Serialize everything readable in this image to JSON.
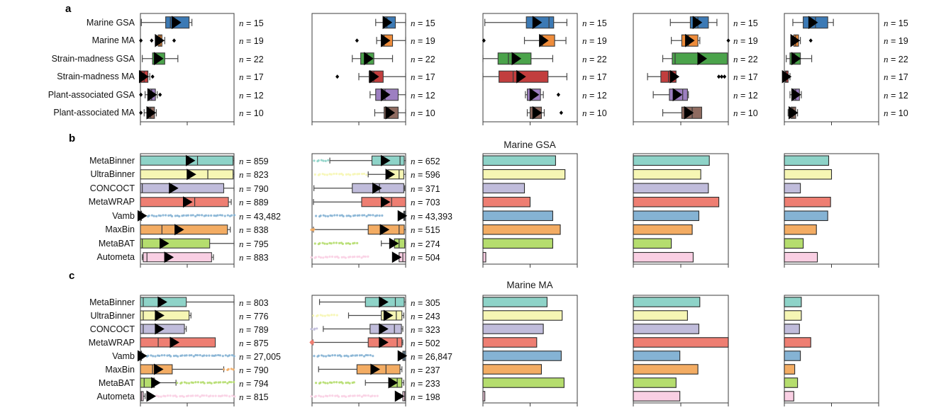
{
  "figure_labels": {
    "panel_a": "a",
    "panel_b": "b",
    "panel_c": "c"
  },
  "titles": {
    "panel_b": "Marine GSA",
    "panel_c": "Marine MA"
  },
  "n_symbol": "n",
  "styles": {
    "panel_a_colors": [
      "#3c7ab5",
      "#ee8c3b",
      "#4ba34b",
      "#c23e3e",
      "#9d7fc1",
      "#8f6b60"
    ],
    "panel_bc_colors": [
      "#8ed3c8",
      "#f6f6b4",
      "#c0bcdb",
      "#ee7e72",
      "#85b3d4",
      "#f3ac63",
      "#b5dd6e",
      "#f9cfe3"
    ],
    "box_stroke": "#3a3a3a",
    "whisker_color": "#4a4a4a",
    "mean_marker_color": "#000000",
    "axis_color": "#3c3c3c"
  },
  "chart_data": {
    "panel_a": {
      "type": "boxplot_grid",
      "note": "5 unlabeled metric columns; horizontal boxplots; x axes normalized 0-1, tick labels cropped out of screenshot",
      "x_axis": {
        "range": [
          0,
          1
        ],
        "ticks": [
          0,
          0.5,
          1
        ],
        "tick_labels_visible": false
      },
      "categories": [
        "Marine GSA",
        "Marine MA",
        "Strain-madness GSA",
        "Strain-madness MA",
        "Plant-associated GSA",
        "Plant-associated MA"
      ],
      "n_labels": [
        "15",
        "19",
        "22",
        "17",
        "12",
        "10"
      ],
      "plots": [
        {
          "boxes": [
            {
              "lo": 0.01,
              "q1": 0.27,
              "med": 0.32,
              "q3": 0.52,
              "hi": 0.55,
              "mean": 0.38
            },
            {
              "lo": 0.16,
              "q1": 0.19,
              "med": 0.21,
              "q3": 0.23,
              "hi": 0.26,
              "mean": 0.2,
              "fliers": [
                0.005,
                0.12,
                0.36
              ]
            },
            {
              "lo": 0.02,
              "q1": 0.13,
              "med": 0.16,
              "q3": 0.26,
              "hi": 0.4,
              "mean": 0.19
            },
            {
              "lo": 0.0,
              "q1": 0.0,
              "med": 0.04,
              "q3": 0.08,
              "hi": 0.1,
              "mean": 0.03,
              "fliers": [
                0.13
              ]
            },
            {
              "lo": 0.05,
              "q1": 0.08,
              "med": 0.12,
              "q3": 0.16,
              "hi": 0.18,
              "mean": 0.12,
              "fliers": [
                0.005,
                0.21
              ]
            },
            {
              "lo": 0.04,
              "q1": 0.07,
              "med": 0.11,
              "q3": 0.15,
              "hi": 0.17,
              "mean": 0.11,
              "fliers": [
                0.005
              ]
            }
          ]
        },
        {
          "boxes": [
            {
              "lo": 0.68,
              "q1": 0.76,
              "med": 0.8,
              "q3": 0.89,
              "hi": 1.0,
              "mean": 0.8
            },
            {
              "lo": 0.69,
              "q1": 0.74,
              "med": 0.77,
              "q3": 0.86,
              "hi": 1.0,
              "mean": 0.78,
              "fliers": [
                0.48
              ]
            },
            {
              "lo": 0.43,
              "q1": 0.52,
              "med": 0.59,
              "q3": 0.66,
              "hi": 0.86,
              "mean": 0.6
            },
            {
              "lo": 0.5,
              "q1": 0.61,
              "med": 0.66,
              "q3": 0.76,
              "hi": 1.0,
              "mean": 0.66,
              "fliers": [
                0.27
              ]
            },
            {
              "lo": 0.62,
              "q1": 0.68,
              "med": 0.78,
              "q3": 0.92,
              "hi": 1.0,
              "mean": 0.78
            },
            {
              "lo": 0.67,
              "q1": 0.77,
              "med": 0.82,
              "q3": 0.92,
              "hi": 1.0,
              "mean": 0.83
            }
          ]
        },
        {
          "boxes": [
            {
              "lo": 0.02,
              "q1": 0.46,
              "med": 0.7,
              "q3": 0.75,
              "hi": 0.89,
              "mean": 0.57
            },
            {
              "lo": 0.44,
              "q1": 0.61,
              "med": 0.63,
              "q3": 0.76,
              "hi": 0.88,
              "mean": 0.64,
              "fliers": [
                0.01
              ]
            },
            {
              "lo": 0.0,
              "q1": 0.16,
              "med": 0.27,
              "q3": 0.51,
              "hi": 0.74,
              "mean": 0.35
            },
            {
              "lo": 0.0,
              "q1": 0.17,
              "med": 0.32,
              "q3": 0.69,
              "hi": 0.89,
              "mean": 0.4
            },
            {
              "lo": 0.45,
              "q1": 0.47,
              "med": 0.52,
              "q3": 0.61,
              "hi": 0.64,
              "mean": 0.54,
              "fliers": [
                0.8
              ]
            },
            {
              "lo": 0.47,
              "q1": 0.5,
              "med": 0.55,
              "q3": 0.62,
              "hi": 0.65,
              "mean": 0.57,
              "fliers": [
                0.83
              ]
            }
          ]
        },
        {
          "boxes": [
            {
              "lo": 0.39,
              "q1": 0.6,
              "med": 0.68,
              "q3": 0.79,
              "hi": 0.88,
              "mean": 0.67
            },
            {
              "lo": 0.4,
              "q1": 0.51,
              "med": 0.58,
              "q3": 0.68,
              "hi": 0.7,
              "mean": 0.59,
              "fliers": [
                1.0
              ]
            },
            {
              "lo": 0.31,
              "q1": 0.41,
              "med": 0.44,
              "q3": 0.99,
              "hi": 0.99,
              "mean": 0.72
            },
            {
              "lo": 0.15,
              "q1": 0.29,
              "med": 0.37,
              "q3": 0.45,
              "hi": 0.45,
              "mean": 0.43,
              "fliers": [
                0.9,
                0.93,
                0.96
              ]
            },
            {
              "lo": 0.21,
              "q1": 0.38,
              "med": 0.52,
              "q3": 0.57,
              "hi": 0.58,
              "mean": 0.46
            },
            {
              "lo": 0.31,
              "q1": 0.51,
              "med": 0.62,
              "q3": 0.72,
              "hi": 0.72,
              "mean": 0.58
            }
          ]
        },
        {
          "boxes": [
            {
              "lo": 0.09,
              "q1": 0.2,
              "med": 0.33,
              "q3": 0.46,
              "hi": 0.52,
              "mean": 0.3
            },
            {
              "lo": 0.07,
              "q1": 0.1,
              "med": 0.12,
              "q3": 0.15,
              "hi": 0.17,
              "mean": 0.11,
              "fliers": [
                0.28
              ]
            },
            {
              "lo": 0.02,
              "q1": 0.06,
              "med": 0.11,
              "q3": 0.17,
              "hi": 0.29,
              "mean": 0.12
            },
            {
              "lo": 0.0,
              "q1": 0.01,
              "med": 0.02,
              "q3": 0.04,
              "hi": 0.06,
              "mean": 0.02
            },
            {
              "lo": 0.06,
              "q1": 0.09,
              "med": 0.12,
              "q3": 0.16,
              "hi": 0.18,
              "mean": 0.12
            },
            {
              "lo": 0.04,
              "q1": 0.07,
              "med": 0.09,
              "q3": 0.12,
              "hi": 0.14,
              "mean": 0.09
            }
          ]
        }
      ]
    },
    "panel_b": {
      "type": "boxplots_and_bars",
      "title": "Marine GSA",
      "tools": [
        "MetaBinner",
        "UltraBinner",
        "CONCOCT",
        "MetaWRAP",
        "Vamb",
        "MaxBin",
        "MetaBAT",
        "Autometa"
      ],
      "x_axis": {
        "range": [
          0,
          1
        ],
        "ticks": [
          0,
          0.5,
          1
        ],
        "tick_labels_visible": false
      },
      "boxplots": [
        {
          "n": [
            "859",
            "823",
            "790",
            "889",
            "43,482",
            "838",
            "795",
            "883"
          ],
          "boxes": [
            {
              "lo": 0,
              "q1": 0,
              "med": 0.61,
              "q3": 0.99,
              "hi": 1.0,
              "mean": 0.53
            },
            {
              "lo": 0,
              "q1": 0,
              "med": 0.72,
              "q3": 0.99,
              "hi": 1.0,
              "mean": 0.54
            },
            {
              "lo": 0,
              "q1": 0,
              "med": 0.02,
              "q3": 0.89,
              "hi": 1.0,
              "mean": 0.35
            },
            {
              "lo": 0,
              "q1": 0,
              "med": 0.58,
              "q3": 0.94,
              "hi": 0.97,
              "mean": 0.5
            },
            {
              "lo": 0,
              "q1": 0,
              "med": 0.005,
              "q3": 0.012,
              "hi": 0.025,
              "mean": 0.015,
              "dots": [
                0.05,
                1.0
              ]
            },
            {
              "lo": 0,
              "q1": 0,
              "med": 0.23,
              "q3": 0.93,
              "hi": 0.96,
              "mean": 0.41
            },
            {
              "lo": 0,
              "q1": 0,
              "med": 0.02,
              "q3": 0.74,
              "hi": 1.0,
              "mean": 0.25
            },
            {
              "lo": 0.02,
              "q1": 0.03,
              "med": 0.07,
              "q3": 0.76,
              "hi": 0.78,
              "mean": 0.3
            }
          ]
        },
        {
          "n": [
            "652",
            "596",
            "371",
            "703",
            "43,393",
            "515",
            "274",
            "504"
          ],
          "boxes": [
            {
              "lo": 0.19,
              "q1": 0.64,
              "med": 0.94,
              "q3": 0.985,
              "hi": 1.0,
              "mean": 0.78,
              "dots": [
                0.03,
                0.17
              ]
            },
            {
              "lo": 0.6,
              "q1": 0.81,
              "med": 0.93,
              "q3": 0.98,
              "hi": 1.0,
              "mean": 0.83,
              "dots": [
                0.04,
                0.58
              ]
            },
            {
              "lo": 0.02,
              "q1": 0.43,
              "med": 0.72,
              "q3": 0.98,
              "hi": 0.99,
              "mean": 0.69
            },
            {
              "lo": 0.015,
              "q1": 0.53,
              "med": 0.85,
              "q3": 1.0,
              "hi": 1.0,
              "mean": 0.78
            },
            {
              "lo": 0.97,
              "q1": 0.98,
              "med": 0.99,
              "q3": 1.0,
              "hi": 1.0,
              "mean": 0.96,
              "dots": [
                0.05,
                0.75
              ]
            },
            {
              "lo": 0.015,
              "q1": 0.6,
              "med": 0.93,
              "q3": 0.985,
              "hi": 1.0,
              "mean": 0.77,
              "dots": [
                0.0,
                0.02
              ]
            },
            {
              "lo": 0.74,
              "q1": 0.88,
              "med": 0.93,
              "q3": 0.99,
              "hi": 1.0,
              "mean": 0.87,
              "dots": [
                0.04,
                0.48
              ]
            },
            {
              "lo": 0.9,
              "q1": 0.93,
              "med": 0.97,
              "q3": 1.0,
              "hi": 1.0,
              "mean": 0.9,
              "dots": [
                0.0,
                0.6
              ]
            }
          ]
        }
      ],
      "bar_charts": [
        {
          "values": [
            0.77,
            0.87,
            0.44,
            0.5,
            0.74,
            0.82,
            0.74,
            0.03
          ]
        },
        {
          "values": [
            0.8,
            0.71,
            0.79,
            0.9,
            0.69,
            0.62,
            0.4,
            0.63
          ]
        },
        {
          "values": [
            0.47,
            0.5,
            0.17,
            0.49,
            0.46,
            0.34,
            0.2,
            0.35
          ]
        }
      ]
    },
    "panel_c": {
      "type": "boxplots_and_bars",
      "title": "Marine MA",
      "tools": [
        "MetaBinner",
        "UltraBinner",
        "CONCOCT",
        "MetaWRAP",
        "Vamb",
        "MaxBin",
        "MetaBAT",
        "Autometa"
      ],
      "x_axis": {
        "range": [
          0,
          1
        ],
        "ticks": [
          0,
          0.5,
          1
        ],
        "tick_labels_visible": false
      },
      "boxplots": [
        {
          "n": [
            "803",
            "776",
            "789",
            "875",
            "27,005",
            "790",
            "794",
            "815"
          ],
          "boxes": [
            {
              "lo": 0,
              "q1": 0,
              "med": 0.03,
              "q3": 0.49,
              "hi": 1.0,
              "mean": 0.23
            },
            {
              "lo": 0,
              "q1": 0,
              "med": 0.03,
              "q3": 0.52,
              "hi": 0.54,
              "mean": 0.2
            },
            {
              "lo": 0,
              "q1": 0,
              "med": 0.03,
              "q3": 0.47,
              "hi": 0.49,
              "mean": 0.2
            },
            {
              "lo": 0,
              "q1": 0,
              "med": 0.19,
              "q3": 0.8,
              "hi": 0.8,
              "mean": 0.36
            },
            {
              "lo": 0,
              "q1": 0,
              "med": 0.005,
              "q3": 0.012,
              "hi": 0.025,
              "mean": 0.015,
              "dots": [
                0.04,
                1.0
              ]
            },
            {
              "lo": 0,
              "q1": 0,
              "med": 0.13,
              "q3": 0.34,
              "hi": 0.89,
              "mean": 0.19,
              "dots": [
                0.9,
                0.995
              ]
            },
            {
              "lo": 0,
              "q1": 0,
              "med": 0.04,
              "q3": 0.15,
              "hi": 0.38,
              "mean": 0.16,
              "dots": [
                0.4,
                1.0
              ]
            },
            {
              "lo": 0,
              "q1": 0,
              "med": 0.01,
              "q3": 0.03,
              "hi": 0.05,
              "mean": 0.11,
              "dots": [
                0.1,
                1.0
              ]
            }
          ]
        },
        {
          "n": [
            "305",
            "243",
            "323",
            "502",
            "26,847",
            "237",
            "233",
            "198"
          ],
          "boxes": [
            {
              "lo": 0.08,
              "q1": 0.57,
              "med": 0.89,
              "q3": 0.985,
              "hi": 1.0,
              "mean": 0.76
            },
            {
              "lo": 0.39,
              "q1": 0.74,
              "med": 0.9,
              "q3": 0.96,
              "hi": 0.98,
              "mean": 0.81,
              "dots": [
                0.02,
                0.26
              ]
            },
            {
              "lo": 0.12,
              "q1": 0.62,
              "med": 0.88,
              "q3": 0.955,
              "hi": 0.97,
              "mean": 0.76,
              "dots": [
                0.0,
                0.05
              ]
            },
            {
              "lo": 0.01,
              "q1": 0.6,
              "med": 0.91,
              "q3": 0.96,
              "hi": 0.97,
              "mean": 0.76,
              "cfliers": [
                0.0
              ]
            },
            {
              "lo": 0.96,
              "q1": 0.97,
              "med": 0.985,
              "q3": 1.0,
              "hi": 1.0,
              "mean": 0.96,
              "dots": [
                0.03,
                0.65
              ]
            },
            {
              "lo": 0.07,
              "q1": 0.48,
              "med": 0.79,
              "q3": 0.94,
              "hi": 0.96,
              "mean": 0.67
            },
            {
              "lo": 0.57,
              "q1": 0.83,
              "med": 0.91,
              "q3": 0.96,
              "hi": 0.98,
              "mean": 0.86,
              "dots": [
                0.05,
                0.45
              ]
            },
            {
              "lo": 0.94,
              "q1": 0.97,
              "med": 0.99,
              "q3": 1.0,
              "hi": 1.0,
              "mean": 0.93,
              "dots": [
                0.0,
                0.7
              ]
            }
          ]
        }
      ],
      "bar_charts": [
        {
          "values": [
            0.68,
            0.84,
            0.64,
            0.57,
            0.83,
            0.62,
            0.86,
            0.02
          ]
        },
        {
          "values": [
            0.7,
            0.57,
            0.69,
            1.0,
            0.49,
            0.68,
            0.45,
            0.49
          ]
        },
        {
          "values": [
            0.18,
            0.18,
            0.16,
            0.28,
            0.17,
            0.11,
            0.14,
            0.1
          ]
        }
      ]
    }
  }
}
